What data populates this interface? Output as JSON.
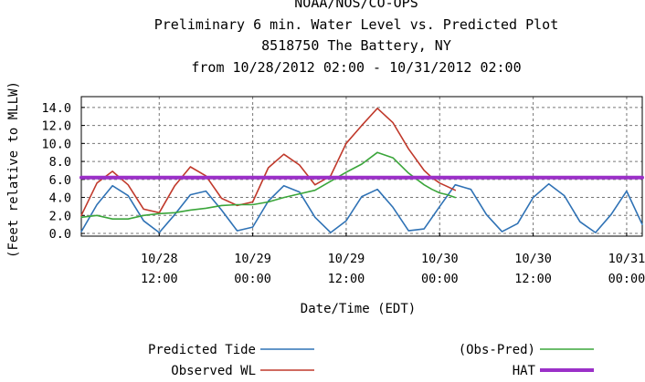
{
  "chart_data": {
    "type": "line",
    "title_lines": [
      "NOAA/NOS/CO-OPS",
      "Preliminary 6 min. Water Level vs. Predicted Plot",
      "8518750 The Battery, NY",
      "from 10/28/2012 02:00 - 10/31/2012 02:00"
    ],
    "xlabel": "Date/Time (EDT)",
    "ylabel": "(Feet relative to MLLW)",
    "ylim": [
      -0.3,
      15.2
    ],
    "yticks": [
      "0.0",
      "2.0",
      "4.0",
      "6.0",
      "8.0",
      "10.0",
      "12.0",
      "14.0"
    ],
    "ytick_values": [
      0,
      2,
      4,
      6,
      8,
      10,
      12,
      14
    ],
    "xlim_hours": [
      0,
      72
    ],
    "xticks": [
      {
        "hour": 10,
        "date": "10/28",
        "time": "12:00"
      },
      {
        "hour": 22,
        "date": "10/29",
        "time": "00:00"
      },
      {
        "hour": 34,
        "date": "10/29",
        "time": "12:00"
      },
      {
        "hour": 46,
        "date": "10/30",
        "time": "00:00"
      },
      {
        "hour": 58,
        "date": "10/30",
        "time": "12:00"
      },
      {
        "hour": 70,
        "date": "10/31",
        "time": "00:00"
      }
    ],
    "grid": true,
    "legend_position": "bottom",
    "series": [
      {
        "name": "Predicted Tide",
        "color": "#2f72b5",
        "x": [
          0,
          2,
          4,
          6,
          8,
          10,
          12,
          14,
          16,
          18,
          20,
          22,
          24,
          26,
          28,
          30,
          32,
          34,
          36,
          38,
          40,
          42,
          44,
          46,
          48,
          50,
          52,
          54,
          56,
          58,
          60,
          62,
          64,
          66,
          68,
          70,
          72
        ],
        "values": [
          0.2,
          3.2,
          5.3,
          4.2,
          1.4,
          0.1,
          2.1,
          4.3,
          4.7,
          2.6,
          0.3,
          0.7,
          3.6,
          5.3,
          4.6,
          1.8,
          0.1,
          1.4,
          4.1,
          4.9,
          2.9,
          0.3,
          0.5,
          3.0,
          5.4,
          4.9,
          2.1,
          0.2,
          1.1,
          4.0,
          5.5,
          4.2,
          1.3,
          0.1,
          2.1,
          4.7,
          1.0
        ]
      },
      {
        "name": "Observed WL",
        "color": "#c0392b",
        "x": [
          0,
          2,
          4,
          6,
          8,
          10,
          12,
          14,
          16,
          18,
          20,
          22,
          24,
          26,
          28,
          30,
          32,
          34,
          36,
          38,
          40,
          42,
          44,
          45,
          46,
          47,
          48
        ],
        "values": [
          2.0,
          5.6,
          6.9,
          5.4,
          2.7,
          2.3,
          5.3,
          7.4,
          6.4,
          3.9,
          3.1,
          3.5,
          7.3,
          8.8,
          7.6,
          5.4,
          6.4,
          10.0,
          12.0,
          13.9,
          12.3,
          9.4,
          7.0,
          6.2,
          5.6,
          5.2,
          4.8
        ]
      },
      {
        "name": "(Obs-Pred)",
        "color": "#3aa53a",
        "x": [
          0,
          2,
          4,
          6,
          8,
          10,
          12,
          14,
          16,
          18,
          20,
          22,
          24,
          26,
          28,
          30,
          32,
          34,
          36,
          38,
          40,
          42,
          44,
          45,
          46,
          47,
          48
        ],
        "values": [
          1.8,
          2.0,
          1.6,
          1.6,
          2.0,
          2.2,
          2.3,
          2.6,
          2.8,
          3.1,
          3.2,
          3.2,
          3.5,
          4.0,
          4.4,
          4.8,
          5.8,
          6.8,
          7.7,
          9.0,
          8.4,
          6.7,
          5.4,
          4.9,
          4.5,
          4.3,
          4.0
        ]
      },
      {
        "name": "HAT",
        "color": "#9b30c8",
        "x": [
          0,
          72
        ],
        "values": [
          6.2,
          6.2
        ]
      }
    ],
    "legend": [
      {
        "label": "Predicted Tide",
        "color": "#2f72b5"
      },
      {
        "label": "Observed WL",
        "color": "#c0392b"
      },
      {
        "label": "(Obs-Pred)",
        "color": "#3aa53a"
      },
      {
        "label": "HAT",
        "color": "#9b30c8"
      }
    ]
  }
}
